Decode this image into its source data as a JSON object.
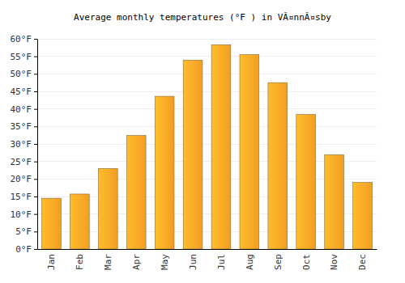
{
  "chart_data": {
    "type": "bar",
    "title": "Average monthly temperatures (°F ) in VÃ¤nnÃ¤sby",
    "categories": [
      "Jan",
      "Feb",
      "Mar",
      "Apr",
      "May",
      "Jun",
      "Jul",
      "Aug",
      "Sep",
      "Oct",
      "Nov",
      "Dec"
    ],
    "values": [
      14.5,
      15.7,
      23.0,
      32.4,
      43.6,
      53.9,
      58.3,
      55.5,
      47.5,
      38.4,
      26.9,
      19.0
    ],
    "color": "#ffa726",
    "ylim": [
      0,
      60
    ],
    "yticks": [
      {
        "value": 0,
        "label": "0°F"
      },
      {
        "value": 5,
        "label": "5°F"
      },
      {
        "value": 10,
        "label": "10°F"
      },
      {
        "value": 15,
        "label": "15°F"
      },
      {
        "value": 20,
        "label": "20°F"
      },
      {
        "value": 25,
        "label": "25°F"
      },
      {
        "value": 30,
        "label": "30°F"
      },
      {
        "value": 35,
        "label": "35°F"
      },
      {
        "value": 40,
        "label": "40°F"
      },
      {
        "value": 45,
        "label": "45°F"
      },
      {
        "value": 50,
        "label": "50°F"
      },
      {
        "value": 55,
        "label": "55°F"
      },
      {
        "value": 60,
        "label": "60°F"
      }
    ],
    "grid": true
  }
}
